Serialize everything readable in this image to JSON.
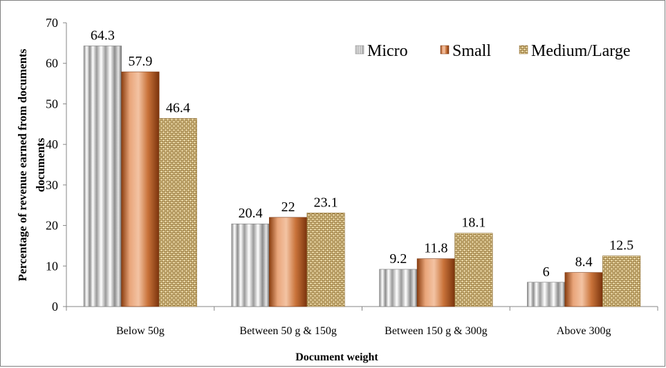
{
  "chart_data": {
    "type": "bar",
    "categories": [
      "Below 50g",
      "Between 50 g & 150g",
      "Between 150 g & 300g",
      "Above 300g"
    ],
    "series": [
      {
        "name": "Micro",
        "values": [
          64.3,
          20.4,
          9.2,
          6
        ],
        "labels": [
          "64.3",
          "20.4",
          "9.2",
          "6"
        ],
        "color": "#d9d9d9",
        "pattern": "vertical-ridged"
      },
      {
        "name": "Small",
        "values": [
          57.9,
          22,
          11.8,
          8.4
        ],
        "labels": [
          "57.9",
          "22",
          "11.8",
          "8.4"
        ],
        "color": "#c46a2c",
        "pattern": "gradient"
      },
      {
        "name": "Medium/Large",
        "values": [
          46.4,
          23.1,
          18.1,
          12.5
        ],
        "labels": [
          "46.4",
          "23.1",
          "18.1",
          "12.5"
        ],
        "color": "#b89a55",
        "pattern": "woven-texture"
      }
    ],
    "xlabel": "Document weight",
    "ylabel": "Percentage of revenue earned from documents",
    "ylim": [
      0,
      70
    ],
    "yticks": [
      "0",
      "10",
      "20",
      "30",
      "40",
      "50",
      "60",
      "70"
    ],
    "grid": false,
    "legend_position": "top-right"
  }
}
